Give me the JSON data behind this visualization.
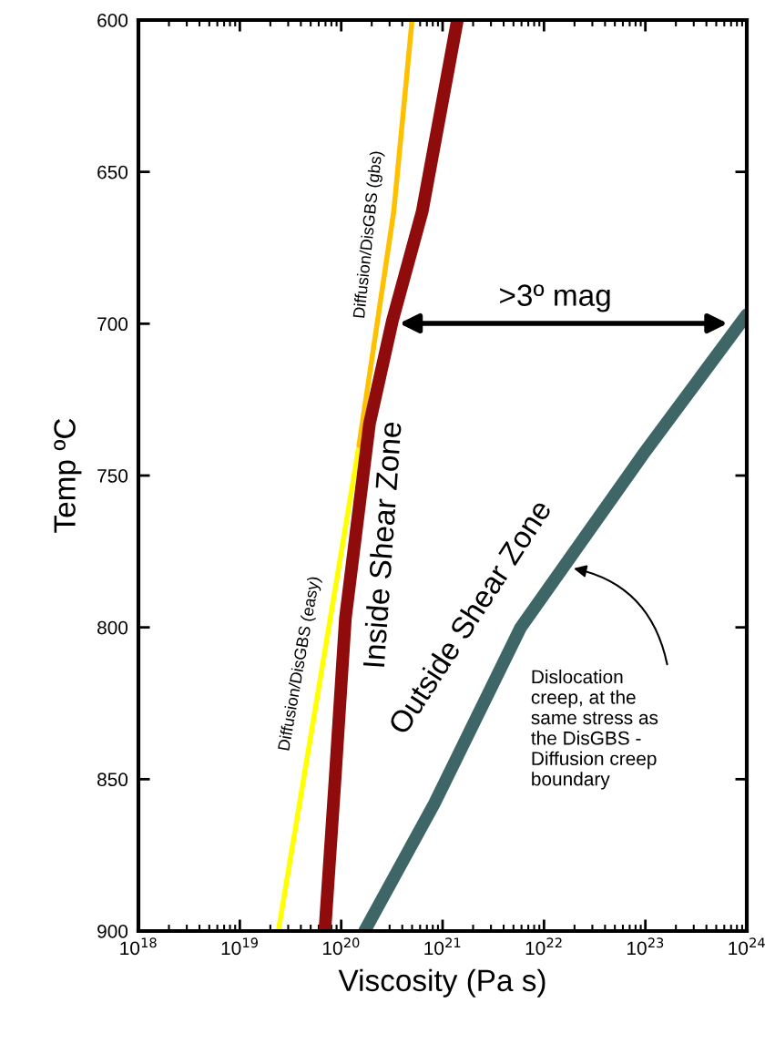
{
  "chart_data": {
    "type": "line",
    "xlabel": "Viscosity (Pa s)",
    "ylabel": "Temp ºC",
    "log": "x",
    "xlim": [
      1e+18,
      1e+24
    ],
    "ylim": [
      900,
      600
    ],
    "xticks": [
      {
        "value": 1e+18,
        "label": "10$^{18}$"
      },
      {
        "value": 1e+19,
        "label": "10$^{19}$"
      },
      {
        "value": 1e+20,
        "label": "10$^{20}$"
      },
      {
        "value": 1e+21,
        "label": "10$^{21}$"
      },
      {
        "value": 1e+22,
        "label": "10$^{22}$"
      },
      {
        "value": 1e+23,
        "label": "10$^{23}$"
      },
      {
        "value": 1e+24,
        "label": "10$^{24}$"
      }
    ],
    "yticks": [
      600,
      650,
      700,
      750,
      800,
      850,
      900
    ],
    "grid": false,
    "legend": false,
    "marker": "none",
    "line_style": "solid",
    "series": [
      {
        "name": "Diffusion/DisGBS (easy)",
        "color": "#ffff00",
        "x": [
          2.4e+19,
          1.5e+20
        ],
        "values": [
          900,
          740
        ]
      },
      {
        "name": "Diffusion/DisGBS (gbs)",
        "color": "#ffc000",
        "x": [
          1.5e+20,
          3.3e+20,
          5e+20
        ],
        "values": [
          740,
          663,
          600
        ]
      },
      {
        "name": "Inside Shear Zone",
        "color": "#900c0c",
        "x": [
          6.9e+19,
          8.7e+19,
          1.1e+20,
          1.9e+20,
          3.2e+20,
          6.3e+20,
          1.4e+21
        ],
        "values": [
          900,
          850,
          797,
          733,
          699,
          663,
          600
        ]
      },
      {
        "name": "Outside Shear Zone",
        "color": "#3f6666",
        "x": [
          1.7e+20,
          8.3e+20,
          5.9e+21,
          1e+23,
          1e+24
        ],
        "values": [
          900,
          858,
          800,
          742,
          697
        ]
      }
    ],
    "annotations": [
      ">3º mag",
      "Dislocation\ncreep, at the\nsame stress as\nthe DisGBS -\nDiffusion creep\nboundary"
    ]
  }
}
